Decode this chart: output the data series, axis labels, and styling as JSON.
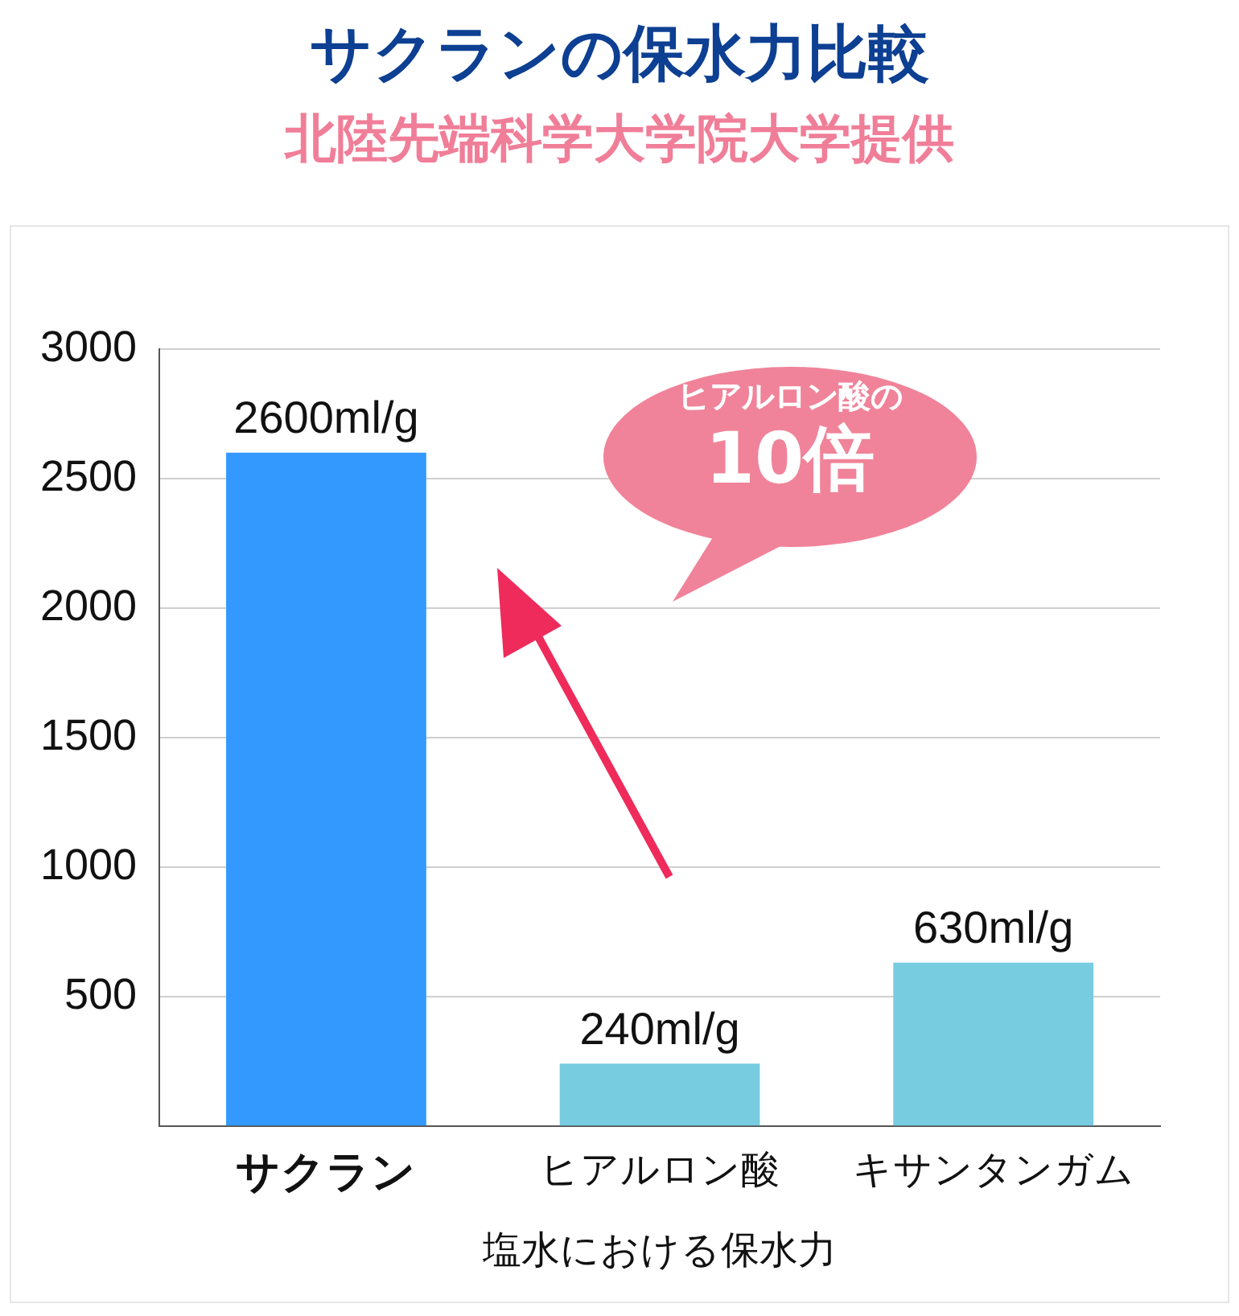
{
  "chart_data": {
    "type": "bar",
    "title": "サクランの保水力比較",
    "subtitle": "北陸先端科学大学院大学提供",
    "xlabel": "塩水における保水力",
    "categories": [
      "サクラン",
      "ヒアルロン酸",
      "キサンタンガム"
    ],
    "values": [
      2600,
      240,
      630
    ],
    "colors": [
      "#3399ff",
      "#77cce0",
      "#77cce0"
    ],
    "value_labels": [
      "2600ml/g",
      "240ml/g",
      "630ml/g"
    ],
    "ylim": [
      0,
      3000
    ],
    "yticks": [
      500,
      1000,
      1500,
      2000,
      2500,
      3000
    ],
    "grid": "y",
    "legend": false,
    "annotations": [
      "ヒアルロン酸の",
      "10倍"
    ]
  }
}
